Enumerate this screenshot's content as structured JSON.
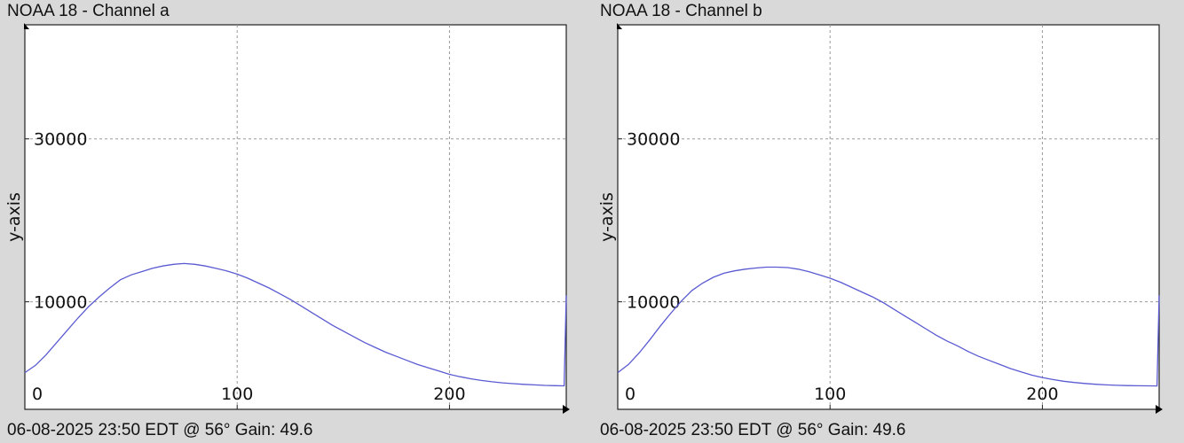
{
  "chart_data": [
    {
      "type": "line",
      "title": "NOAA 18 - Channel a",
      "footer": "06-08-2025 23:50 EDT @ 56° Gain: 49.6",
      "ylabel": "y-axis",
      "xlabel": "",
      "xlim": [
        0,
        255
      ],
      "ylim": [
        -3200,
        44000
      ],
      "xticks": [
        0,
        100,
        200
      ],
      "yticks": [
        10000,
        30000
      ],
      "grid": true,
      "color": "#5a5ad2",
      "series": [
        {
          "x": [
            0,
            5,
            10,
            15,
            20,
            25,
            30,
            35,
            40,
            45,
            50,
            55,
            60,
            65,
            70,
            75,
            80,
            85,
            90,
            95,
            100,
            105,
            110,
            115,
            120,
            125,
            130,
            135,
            140,
            145,
            150,
            155,
            160,
            165,
            170,
            175,
            180,
            185,
            190,
            195,
            200,
            205,
            210,
            215,
            220,
            225,
            230,
            235,
            240,
            245,
            250,
            254,
            255
          ],
          "y": [
            1300,
            2200,
            3500,
            5000,
            6500,
            8000,
            9400,
            10600,
            11700,
            12700,
            13300,
            13700,
            14100,
            14400,
            14600,
            14700,
            14600,
            14400,
            14100,
            13800,
            13400,
            12900,
            12300,
            11700,
            11000,
            10300,
            9500,
            8700,
            7900,
            7100,
            6400,
            5700,
            5000,
            4400,
            3800,
            3300,
            2800,
            2300,
            1900,
            1500,
            1100,
            800,
            550,
            350,
            180,
            50,
            -50,
            -130,
            -200,
            -260,
            -300,
            -320,
            10800
          ]
        }
      ]
    },
    {
      "type": "line",
      "title": "NOAA 18 - Channel b",
      "footer": "06-08-2025 23:50 EDT @ 56° Gain: 49.6",
      "ylabel": "y-axis",
      "xlabel": "",
      "xlim": [
        0,
        255
      ],
      "ylim": [
        -3200,
        44000
      ],
      "xticks": [
        0,
        100,
        200
      ],
      "yticks": [
        10000,
        30000
      ],
      "grid": true,
      "color": "#5a5ad2",
      "series": [
        {
          "x": [
            0,
            5,
            10,
            15,
            20,
            25,
            30,
            35,
            40,
            45,
            50,
            55,
            60,
            65,
            70,
            75,
            80,
            85,
            90,
            95,
            100,
            105,
            110,
            115,
            120,
            125,
            130,
            135,
            140,
            145,
            150,
            155,
            160,
            165,
            170,
            175,
            180,
            185,
            190,
            195,
            200,
            205,
            210,
            215,
            220,
            225,
            230,
            235,
            240,
            245,
            250,
            254,
            255
          ],
          "y": [
            1300,
            2300,
            3700,
            5300,
            7000,
            8600,
            10100,
            11400,
            12300,
            13000,
            13500,
            13800,
            14000,
            14150,
            14250,
            14250,
            14200,
            14000,
            13700,
            13300,
            12900,
            12400,
            11800,
            11200,
            10600,
            9900,
            9100,
            8300,
            7500,
            6700,
            5900,
            5200,
            4600,
            3900,
            3300,
            2800,
            2300,
            1800,
            1400,
            1000,
            700,
            450,
            250,
            100,
            -20,
            -120,
            -200,
            -250,
            -290,
            -310,
            -320,
            -330,
            10800
          ]
        }
      ]
    }
  ]
}
